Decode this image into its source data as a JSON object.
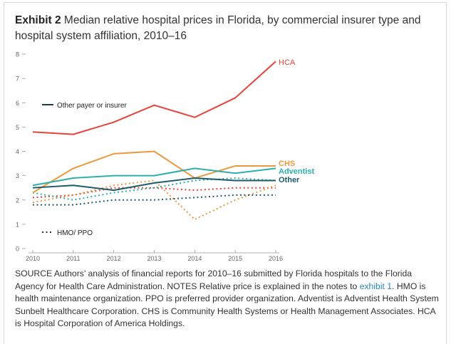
{
  "title": {
    "bold": "Exhibit 2",
    "text": " Median relative hospital prices in Florida, by commercial insurer type and hospital system affiliation, 2010–16"
  },
  "chart_data": {
    "type": "line",
    "x": [
      2010,
      2011,
      2012,
      2013,
      2014,
      2015,
      2016
    ],
    "ylim": [
      0,
      8
    ],
    "yticks": [
      0,
      1,
      2,
      3,
      4,
      5,
      6,
      7,
      8
    ],
    "grid": false,
    "series": [
      {
        "name": "HCA",
        "style": "solid",
        "color": "#e8433b",
        "values": [
          4.8,
          4.7,
          5.2,
          5.9,
          5.4,
          6.2,
          7.7
        ]
      },
      {
        "name": "CHS",
        "style": "solid",
        "color": "#e99a3c",
        "values": [
          2.3,
          3.3,
          3.9,
          4.0,
          2.9,
          3.4,
          3.4
        ]
      },
      {
        "name": "Adventist",
        "style": "solid",
        "color": "#2bb0ad",
        "values": [
          2.6,
          2.9,
          3.0,
          3.0,
          3.3,
          3.1,
          3.3
        ]
      },
      {
        "name": "Other",
        "style": "solid",
        "color": "#1e5b6b",
        "values": [
          2.5,
          2.6,
          2.4,
          2.7,
          2.9,
          2.8,
          2.8
        ]
      },
      {
        "style": "dotted",
        "color": "#e8433b",
        "values": [
          2.1,
          2.2,
          2.5,
          2.5,
          2.4,
          2.5,
          2.5
        ]
      },
      {
        "style": "dotted",
        "color": "#e99a3c",
        "values": [
          1.9,
          2.2,
          2.6,
          2.8,
          1.2,
          2.0,
          2.6
        ]
      },
      {
        "style": "dotted",
        "color": "#2bb0ad",
        "values": [
          2.3,
          2.0,
          2.3,
          2.5,
          2.8,
          2.9,
          2.8
        ]
      },
      {
        "style": "dotted",
        "color": "#1e5b6b",
        "values": [
          1.8,
          1.8,
          2.0,
          2.0,
          2.1,
          2.2,
          2.2
        ]
      }
    ],
    "legend": [
      {
        "label": "Other payer or insurer",
        "style": "solid"
      },
      {
        "label": "HMO/ PPO",
        "style": "dotted"
      }
    ]
  },
  "source": {
    "part1": "SOURCE Authors’ analysis of financial reports for 2010–16 submitted by Florida hospitals to the Florida Agency for Health Care Administration. NOTES Relative price is explained in the notes to ",
    "link": "exhibit 1",
    "part2": ". HMO is health maintenance organization. PPO is preferred provider organization. Adventist is Adventist Health System Sunbelt Healthcare Corporation. CHS is Community Health Systems or Health Management Associates. HCA is Hospital Corporation of America Holdings."
  }
}
